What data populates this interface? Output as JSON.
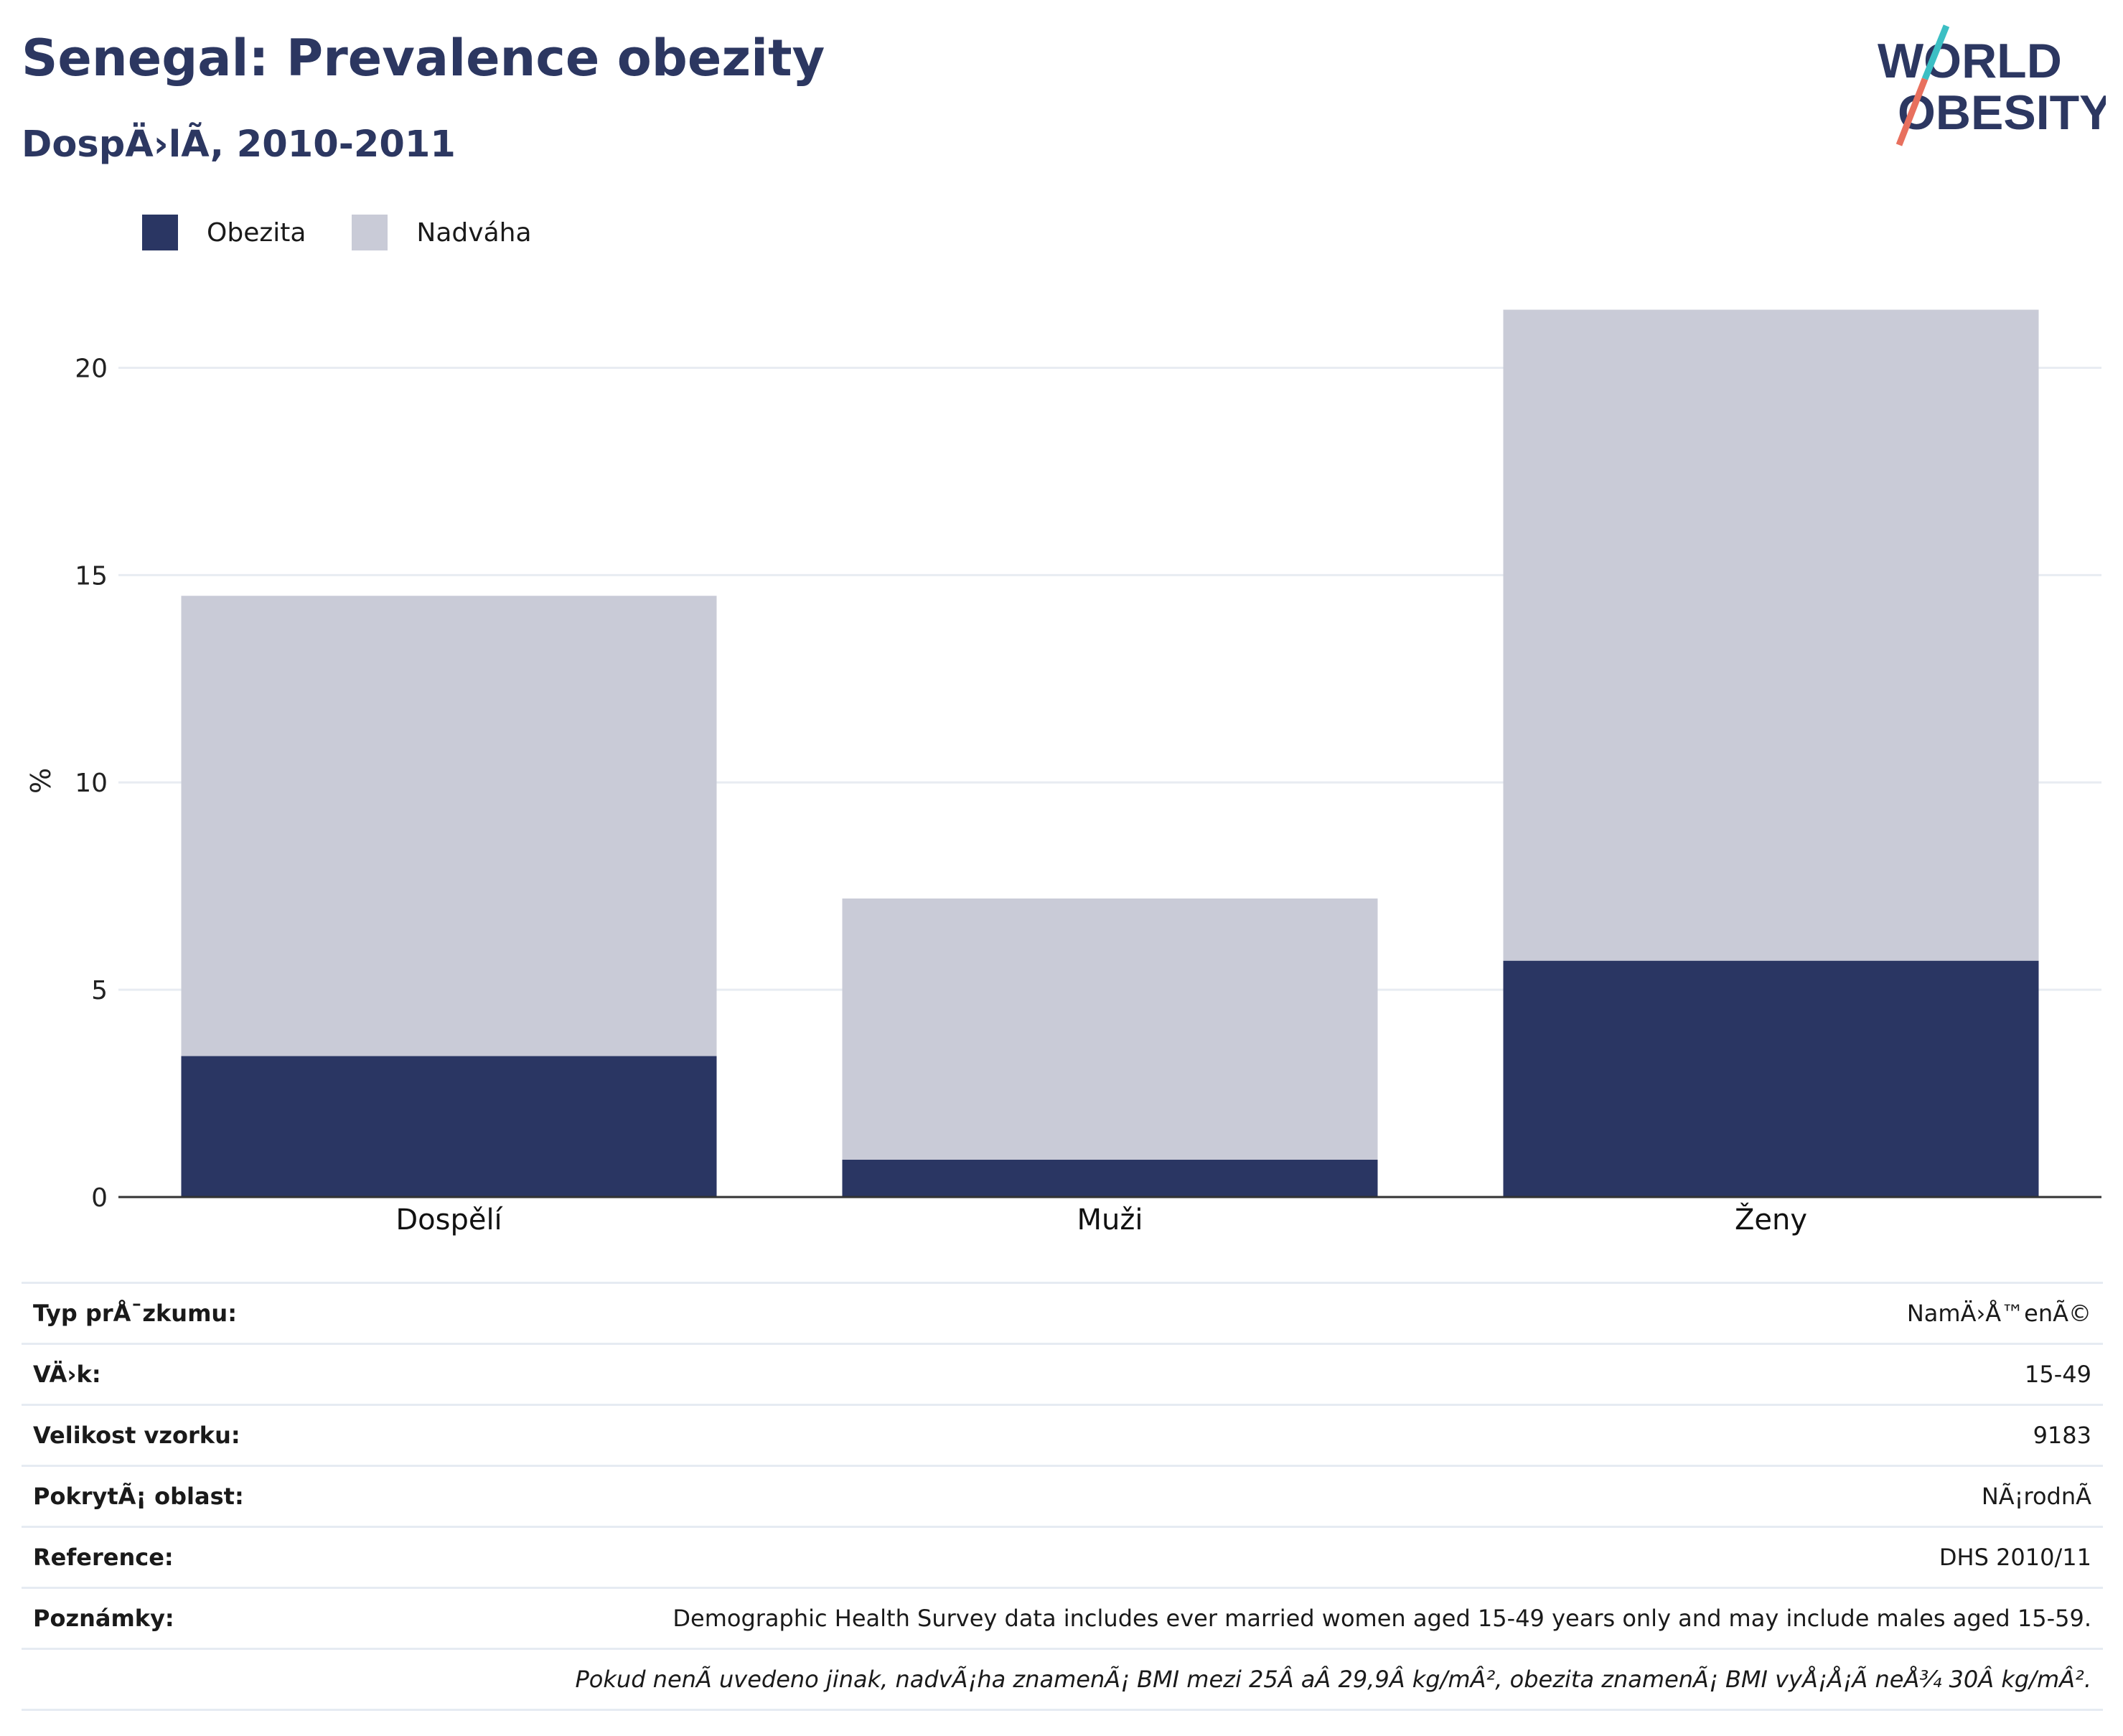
{
  "header": {
    "title": "Senegal: Prevalence obezity",
    "subtitle": "DospÄ›lÃ­, 2010-2011"
  },
  "logo": {
    "line1": "WORLD",
    "line2": "OBESITY"
  },
  "colors": {
    "obesity": "#2a3663",
    "overweight": "#c9cbd7",
    "title": "#2c3761",
    "grid": "#e8ecf2",
    "axis": "#333333",
    "logo_teal": "#3cbfc4",
    "logo_red": "#e8705e"
  },
  "legend": [
    {
      "label": "Obezita",
      "color_key": "obesity"
    },
    {
      "label": "Nadváha",
      "color_key": "overweight"
    }
  ],
  "chart_data": {
    "type": "bar",
    "stacked": true,
    "categories": [
      "Dospělí",
      "Muži",
      "Ženy"
    ],
    "series": [
      {
        "name": "Obezita",
        "values": [
          3.4,
          0.9,
          5.7
        ]
      },
      {
        "name": "Nadváha",
        "values": [
          11.1,
          6.3,
          15.7
        ]
      }
    ],
    "ylabel": "%",
    "ylim": [
      0,
      22.5
    ],
    "yticks": [
      0,
      5,
      10,
      15,
      20
    ],
    "grid": true,
    "legend_position": "top-left"
  },
  "info": {
    "rows": [
      {
        "key": "Typ prÅ¯zkumu:",
        "value": "NamÄ›Å™enÃ©"
      },
      {
        "key": "VÄ›k:",
        "value": "15-49"
      },
      {
        "key": "Velikost vzorku:",
        "value": "9183"
      },
      {
        "key": "PokrytÃ¡ oblast:",
        "value": "NÃ¡rodnÃ­"
      },
      {
        "key": "Reference:",
        "value": "DHS 2010/11"
      },
      {
        "key": "Poznámky:",
        "value": "Demographic Health Survey data includes ever married women aged 15-49 years only and may include males aged 15-59."
      }
    ],
    "footnote": "Pokud nenÃ­ uvedeno jinak, nadvÃ¡ha znamenÃ¡ BMI mezi 25Â aÂ 29,9Â kg/mÂ², obezita znamenÃ¡ BMI vyÅ¡Å¡Ã­ neÅ¾ 30Â kg/mÂ²."
  }
}
